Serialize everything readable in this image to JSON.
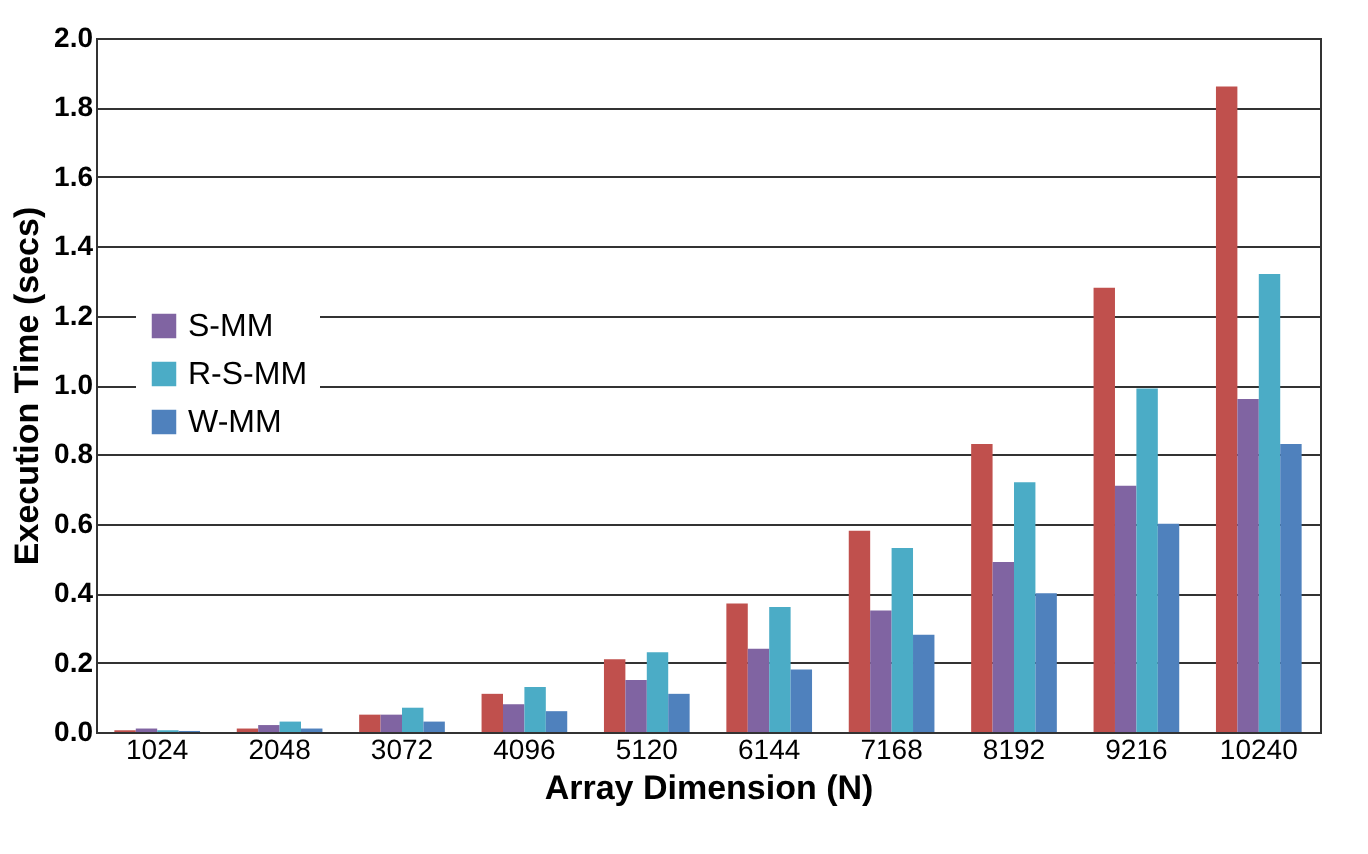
{
  "chart_data": {
    "type": "bar",
    "xlabel": "Array Dimension (N)",
    "ylabel": "Execution Time (secs)",
    "categories": [
      "1024",
      "2048",
      "3072",
      "4096",
      "5120",
      "6144",
      "7168",
      "8192",
      "9216",
      "10240"
    ],
    "series": [
      {
        "color": "#c0504d",
        "values": [
          0.005,
          0.01,
          0.05,
          0.11,
          0.21,
          0.37,
          0.58,
          0.83,
          1.28,
          1.86
        ]
      },
      {
        "name": "S-MM",
        "color": "#8064a2",
        "values": [
          0.01,
          0.02,
          0.05,
          0.08,
          0.15,
          0.24,
          0.35,
          0.49,
          0.71,
          0.96
        ]
      },
      {
        "name": "R-S-MM",
        "color": "#4bacc6",
        "values": [
          0.005,
          0.03,
          0.07,
          0.13,
          0.23,
          0.36,
          0.53,
          0.72,
          0.99,
          1.32
        ]
      },
      {
        "name": "W-MM",
        "color": "#4f81bd",
        "values": [
          0.003,
          0.01,
          0.03,
          0.06,
          0.11,
          0.18,
          0.28,
          0.4,
          0.6,
          0.83
        ]
      }
    ],
    "ylim": [
      0,
      2.0
    ],
    "yticks": [
      {
        "value": 0,
        "label": "0.0"
      },
      {
        "value": 0.2,
        "label": "0.2"
      },
      {
        "value": 0.4,
        "label": "0.4"
      },
      {
        "value": 0.6,
        "label": "0.6"
      },
      {
        "value": 0.8,
        "label": "0.8"
      },
      {
        "value": 1.0,
        "label": "1.0"
      },
      {
        "value": 1.2,
        "label": "1.2"
      },
      {
        "value": 1.4,
        "label": "1.4"
      },
      {
        "value": 1.6,
        "label": "1.6"
      },
      {
        "value": 1.8,
        "label": "1.8"
      },
      {
        "value": 2.0,
        "label": "2.0"
      }
    ],
    "grid": "y",
    "legend": "left"
  }
}
